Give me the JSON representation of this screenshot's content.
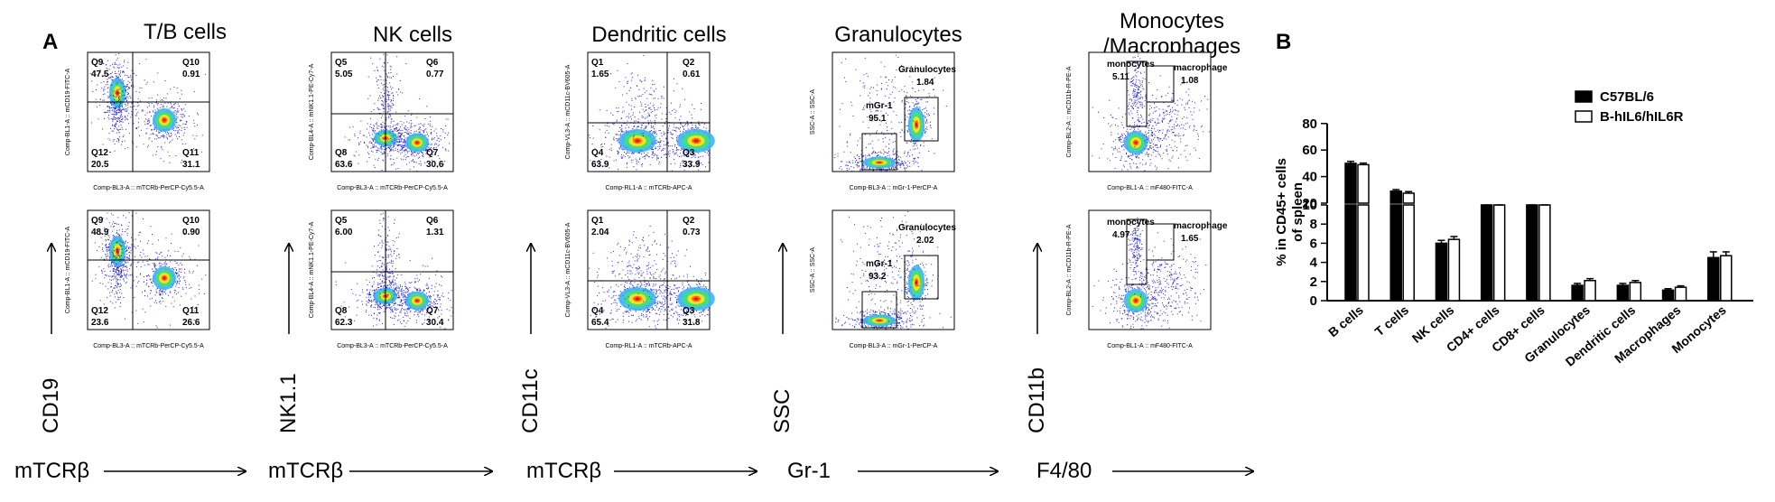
{
  "panel_a_label": "A",
  "panel_b_label": "B",
  "columns": [
    {
      "title": "T/B cells",
      "y_marker": "CD19",
      "x_marker": "mTCRβ",
      "x_channel": "Comp-BL3-A :: mTCRb-PerCP-Cy5.5-A",
      "y_channel": "Comp-BL1-A :: mCD19-FITC-A",
      "style": "quad",
      "plots": [
        {
          "gates": [
            {
              "name": "Q9",
              "value": "47.5"
            },
            {
              "name": "Q10",
              "value": "0.91"
            },
            {
              "name": "Q12",
              "value": "20.5"
            },
            {
              "name": "Q11",
              "value": "31.1"
            }
          ]
        },
        {
          "gates": [
            {
              "name": "Q9",
              "value": "48.9"
            },
            {
              "name": "Q10",
              "value": "0.90"
            },
            {
              "name": "Q12",
              "value": "23.6"
            },
            {
              "name": "Q11",
              "value": "26.6"
            }
          ]
        }
      ]
    },
    {
      "title": "NK cells",
      "y_marker": "NK1.1",
      "x_marker": "mTCRβ",
      "x_channel": "Comp-BL3-A :: mTCRb-PerCP-Cy5.5-A",
      "y_channel": "Comp-BL4-A :: mNK1.1-PE-Cy7-A",
      "style": "quad",
      "plots": [
        {
          "gates": [
            {
              "name": "Q5",
              "value": "5.05"
            },
            {
              "name": "Q6",
              "value": "0.77"
            },
            {
              "name": "Q8",
              "value": "63.6"
            },
            {
              "name": "Q7",
              "value": "30.6"
            }
          ]
        },
        {
          "gates": [
            {
              "name": "Q5",
              "value": "6.00"
            },
            {
              "name": "Q6",
              "value": "1.31"
            },
            {
              "name": "Q8",
              "value": "62.3"
            },
            {
              "name": "Q7",
              "value": "30.4"
            }
          ]
        }
      ]
    },
    {
      "title": "Dendritic cells",
      "y_marker": "CD11c",
      "x_marker": "mTCRβ",
      "x_channel": "Comp-RL1-A :: mTCRb-APC-A",
      "y_channel": "Comp-VL3-A :: mCD11c-BV605-A",
      "style": "quad",
      "plots": [
        {
          "gates": [
            {
              "name": "Q1",
              "value": "1.65"
            },
            {
              "name": "Q2",
              "value": "0.61"
            },
            {
              "name": "Q4",
              "value": "63.9"
            },
            {
              "name": "Q3",
              "value": "33.9"
            }
          ]
        },
        {
          "gates": [
            {
              "name": "Q1",
              "value": "2.04"
            },
            {
              "name": "Q2",
              "value": "0.73"
            },
            {
              "name": "Q4",
              "value": "65.4"
            },
            {
              "name": "Q3",
              "value": "31.8"
            }
          ]
        }
      ]
    },
    {
      "title": "Granulocytes",
      "y_marker": "SSC",
      "x_marker": "Gr-1",
      "x_channel": "Comp-BL3-A :: mGr-1-PerCP-A",
      "y_channel": "SSC-A :: SSC-A",
      "style": "ssc",
      "plots": [
        {
          "gates": [
            {
              "name": "mGr-1",
              "value": "95.1"
            },
            {
              "name": "Granulocytes",
              "value": "1.84"
            }
          ]
        },
        {
          "gates": [
            {
              "name": "mGr-1",
              "value": "93.2"
            },
            {
              "name": "Granulocytes",
              "value": "2.02"
            }
          ]
        }
      ]
    },
    {
      "title": "Monocytes\n/Macrophages",
      "y_marker": "CD11b",
      "x_marker": "F4/80",
      "x_channel": "Comp-BL1-A :: mF480-FITC-A",
      "y_channel": "Comp-BL2-A :: mCD11b-R-PE-A",
      "style": "mono",
      "plots": [
        {
          "gates": [
            {
              "name": "monocytes",
              "value": "5.11"
            },
            {
              "name": "macrophage",
              "value": "1.08"
            }
          ]
        },
        {
          "gates": [
            {
              "name": "monocytes",
              "value": "4.97"
            },
            {
              "name": "macrophage",
              "value": "1.65"
            }
          ]
        }
      ]
    }
  ],
  "chart_data": {
    "type": "bar",
    "ylabel": "% in CD45+ cells\nof spleen",
    "y_axis_break": [
      10,
      20
    ],
    "yticks_lower": [
      0,
      2,
      4,
      6,
      8,
      10
    ],
    "yticks_upper": [
      20,
      40,
      60,
      80
    ],
    "categories": [
      "B cells",
      "T cells",
      "NK cells",
      "CD4+ cells",
      "CD8+ cells",
      "Granulocytes",
      "Dendritic cells",
      "Macrophages",
      "Monocytes"
    ],
    "series": [
      {
        "name": "C57BL/6",
        "fill": "#000000",
        "values": [
          50,
          29,
          6.0,
          17,
          10.7,
          1.6,
          1.6,
          1.1,
          4.5
        ],
        "errors": [
          1.5,
          1.2,
          0.3,
          1.2,
          0.4,
          0.2,
          0.2,
          0.15,
          0.6
        ]
      },
      {
        "name": "B-hIL6/hIL6R",
        "fill": "#ffffff",
        "values": [
          49,
          27.5,
          6.4,
          16,
          10.9,
          2.1,
          1.9,
          1.4,
          4.7
        ],
        "errors": [
          1.2,
          1.2,
          0.3,
          1.0,
          0.4,
          0.2,
          0.2,
          0.15,
          0.4
        ]
      }
    ]
  }
}
